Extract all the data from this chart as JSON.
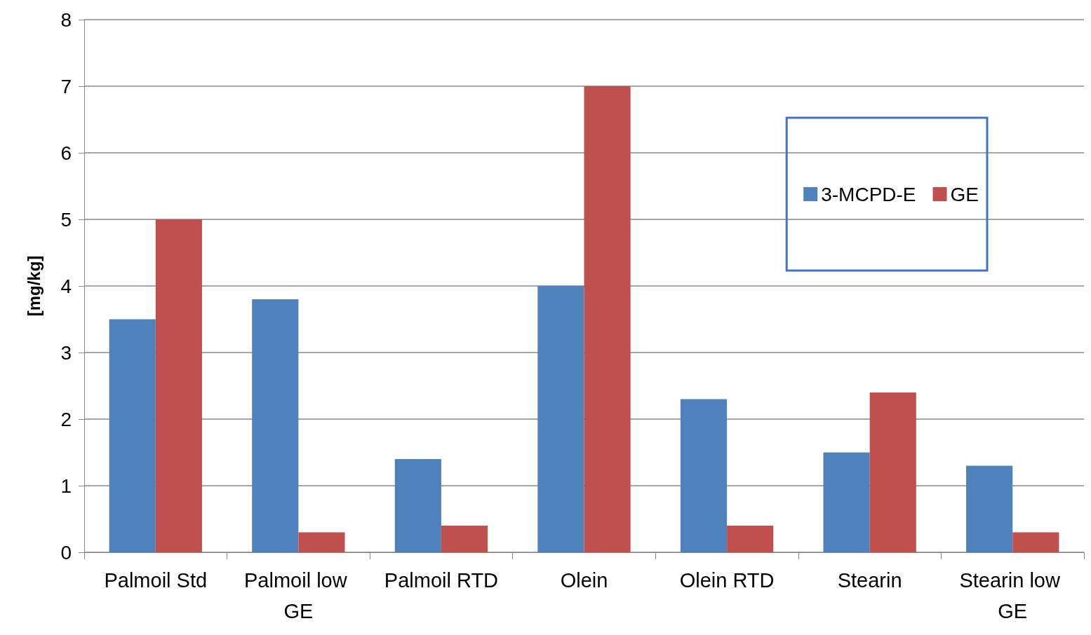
{
  "chart_data": {
    "type": "bar",
    "ylabel": "[mg/kg]",
    "categories": [
      "Palmoil Std",
      "Palmoil low GE",
      "Palmoil RTD",
      "Olein",
      "Olein RTD",
      "Stearin",
      "Stearin low GE"
    ],
    "series": [
      {
        "name": "3-MCPD-E",
        "color": "#4f81bd",
        "values": [
          3.5,
          3.8,
          1.4,
          4,
          2.3,
          1.5,
          1.3
        ]
      },
      {
        "name": "GE",
        "color": "#c0504d",
        "values": [
          5,
          0.3,
          0.4,
          7,
          0.4,
          2.4,
          0.3
        ]
      }
    ],
    "ylim": [
      0,
      8
    ],
    "yticks": [
      0,
      1,
      2,
      3,
      4,
      5,
      6,
      7,
      8
    ],
    "grid": "y",
    "legend": "top right"
  }
}
